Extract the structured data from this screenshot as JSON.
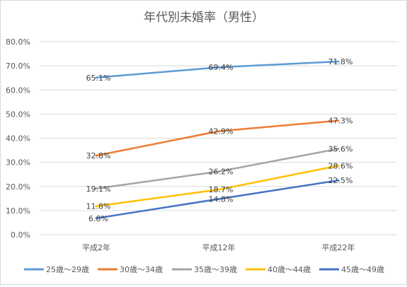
{
  "chart_data": {
    "type": "line",
    "title": "年代別未婚率（男性）",
    "xlabel": "",
    "ylabel": "",
    "categories": [
      "平成2年",
      "平成12年",
      "平成22年"
    ],
    "y_tick_labels": [
      "0.0%",
      "10.0%",
      "20.0%",
      "30.0%",
      "40.0%",
      "50.0%",
      "60.0%",
      "70.0%",
      "80.0%"
    ],
    "ylim": [
      0,
      80
    ],
    "grid": true,
    "legend_position": "bottom",
    "series": [
      {
        "name": "25歳～29歳",
        "color": "#5B9BD5",
        "values": [
          65.1,
          69.4,
          71.8
        ],
        "labels": [
          "65.1%",
          "69.4%",
          "71.8%"
        ]
      },
      {
        "name": "30歳～34歳",
        "color": "#ED7D31",
        "values": [
          32.8,
          42.9,
          47.3
        ],
        "labels": [
          "32.8%",
          "42.9%",
          "47.3%"
        ]
      },
      {
        "name": "35歳～39歳",
        "color": "#A5A5A5",
        "values": [
          19.1,
          26.2,
          35.6
        ],
        "labels": [
          "19.1%",
          "26.2%",
          "35.6%"
        ]
      },
      {
        "name": "40歳～44歳",
        "color": "#FFC000",
        "values": [
          11.8,
          18.7,
          28.6
        ],
        "labels": [
          "11.8%",
          "18.7%",
          "28.6%"
        ]
      },
      {
        "name": "45歳～49歳",
        "color": "#4472C4",
        "values": [
          6.8,
          14.8,
          22.5
        ],
        "labels": [
          "6.8%",
          "14.8%",
          "22.5%"
        ]
      }
    ]
  }
}
